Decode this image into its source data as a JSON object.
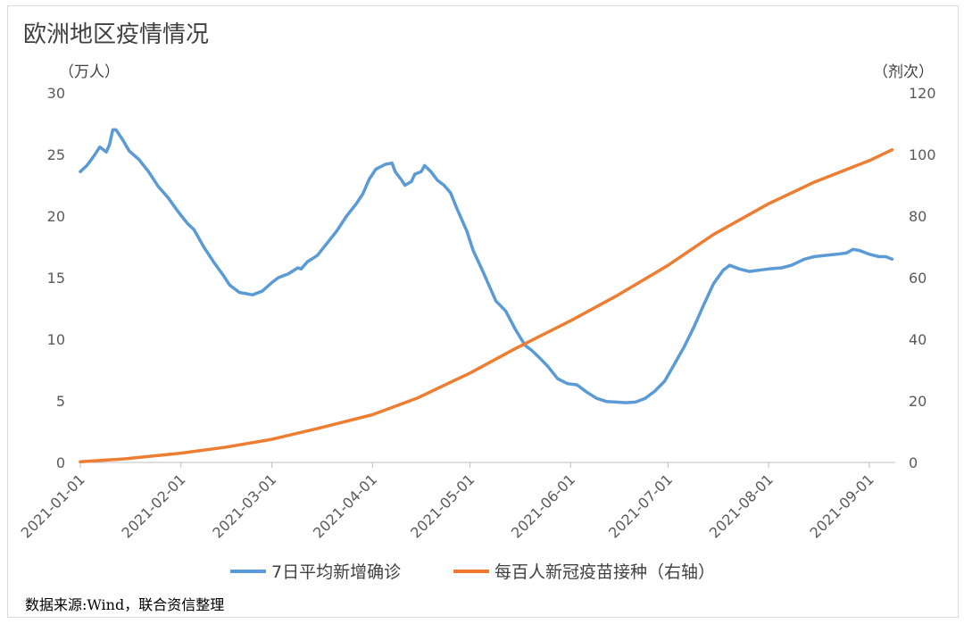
{
  "title": "欧洲地区疫情情况",
  "left_axis_unit": "（万人）",
  "right_axis_unit": "（剂次）",
  "source": "数据来源:Wind，联合资信整理",
  "colors": {
    "series1": "#5b9bd5",
    "series2": "#ed7d31",
    "axis": "#bfbfbf",
    "text": "#595959"
  },
  "chart_data": {
    "type": "line",
    "title": "欧洲地区疫情情况",
    "legend_position": "bottom",
    "grid": false,
    "x_ticks": [
      "2021-01-01",
      "2021-02-01",
      "2021-03-01",
      "2021-04-01",
      "2021-05-01",
      "2021-06-01",
      "2021-07-01",
      "2021-08-01",
      "2021-09-01"
    ],
    "y_left": {
      "label": "（万人）",
      "range": [
        0,
        30
      ],
      "ticks": [
        "0",
        "5",
        "10",
        "15",
        "20",
        "25",
        "30"
      ]
    },
    "y_right": {
      "label": "（剂次）",
      "range": [
        0,
        120
      ],
      "ticks": [
        "0",
        "20",
        "40",
        "60",
        "80",
        "100",
        "120"
      ]
    },
    "series": [
      {
        "name": "7日平均新增确诊",
        "axis": "left",
        "points": [
          [
            "2021-01-01",
            23.6
          ],
          [
            "2021-01-03",
            24.1
          ],
          [
            "2021-01-05",
            24.8
          ],
          [
            "2021-01-07",
            25.6
          ],
          [
            "2021-01-08",
            25.4
          ],
          [
            "2021-01-09",
            25.2
          ],
          [
            "2021-01-10",
            25.8
          ],
          [
            "2021-01-11",
            27.0
          ],
          [
            "2021-01-12",
            27.0
          ],
          [
            "2021-01-14",
            26.2
          ],
          [
            "2021-01-16",
            25.3
          ],
          [
            "2021-01-19",
            24.6
          ],
          [
            "2021-01-22",
            23.6
          ],
          [
            "2021-01-25",
            22.4
          ],
          [
            "2021-01-28",
            21.5
          ],
          [
            "2021-01-31",
            20.4
          ],
          [
            "2021-02-03",
            19.4
          ],
          [
            "2021-02-05",
            18.9
          ],
          [
            "2021-02-08",
            17.5
          ],
          [
            "2021-02-11",
            16.3
          ],
          [
            "2021-02-14",
            15.2
          ],
          [
            "2021-02-16",
            14.4
          ],
          [
            "2021-02-19",
            13.8
          ],
          [
            "2021-02-21",
            13.7
          ],
          [
            "2021-02-23",
            13.6
          ],
          [
            "2021-02-26",
            13.9
          ],
          [
            "2021-03-01",
            14.6
          ],
          [
            "2021-03-03",
            15.0
          ],
          [
            "2021-03-06",
            15.3
          ],
          [
            "2021-03-09",
            15.8
          ],
          [
            "2021-03-10",
            15.7
          ],
          [
            "2021-03-12",
            16.3
          ],
          [
            "2021-03-15",
            16.8
          ],
          [
            "2021-03-18",
            17.8
          ],
          [
            "2021-03-21",
            18.8
          ],
          [
            "2021-03-24",
            20.0
          ],
          [
            "2021-03-27",
            21.0
          ],
          [
            "2021-03-29",
            21.8
          ],
          [
            "2021-03-31",
            23.0
          ],
          [
            "2021-04-02",
            23.8
          ],
          [
            "2021-04-05",
            24.2
          ],
          [
            "2021-04-07",
            24.3
          ],
          [
            "2021-04-08",
            23.6
          ],
          [
            "2021-04-10",
            22.9
          ],
          [
            "2021-04-11",
            22.5
          ],
          [
            "2021-04-13",
            22.8
          ],
          [
            "2021-04-14",
            23.4
          ],
          [
            "2021-04-16",
            23.6
          ],
          [
            "2021-04-17",
            24.1
          ],
          [
            "2021-04-19",
            23.6
          ],
          [
            "2021-04-21",
            22.9
          ],
          [
            "2021-04-23",
            22.5
          ],
          [
            "2021-04-25",
            21.9
          ],
          [
            "2021-04-27",
            20.6
          ],
          [
            "2021-04-30",
            18.8
          ],
          [
            "2021-05-02",
            17.2
          ],
          [
            "2021-05-05",
            15.5
          ],
          [
            "2021-05-07",
            14.3
          ],
          [
            "2021-05-09",
            13.1
          ],
          [
            "2021-05-12",
            12.3
          ],
          [
            "2021-05-15",
            10.8
          ],
          [
            "2021-05-18",
            9.5
          ],
          [
            "2021-05-20",
            9.1
          ],
          [
            "2021-05-22",
            8.6
          ],
          [
            "2021-05-25",
            7.8
          ],
          [
            "2021-05-28",
            6.8
          ],
          [
            "2021-05-31",
            6.4
          ],
          [
            "2021-06-03",
            6.3
          ],
          [
            "2021-06-06",
            5.7
          ],
          [
            "2021-06-09",
            5.2
          ],
          [
            "2021-06-12",
            4.95
          ],
          [
            "2021-06-15",
            4.9
          ],
          [
            "2021-06-18",
            4.85
          ],
          [
            "2021-06-21",
            4.9
          ],
          [
            "2021-06-24",
            5.2
          ],
          [
            "2021-06-27",
            5.8
          ],
          [
            "2021-06-30",
            6.6
          ],
          [
            "2021-07-03",
            8.0
          ],
          [
            "2021-07-06",
            9.4
          ],
          [
            "2021-07-09",
            11.0
          ],
          [
            "2021-07-12",
            12.8
          ],
          [
            "2021-07-15",
            14.5
          ],
          [
            "2021-07-18",
            15.6
          ],
          [
            "2021-07-20",
            16.0
          ],
          [
            "2021-07-23",
            15.7
          ],
          [
            "2021-07-26",
            15.5
          ],
          [
            "2021-07-29",
            15.6
          ],
          [
            "2021-08-01",
            15.7
          ],
          [
            "2021-08-05",
            15.8
          ],
          [
            "2021-08-08",
            16.0
          ],
          [
            "2021-08-12",
            16.5
          ],
          [
            "2021-08-15",
            16.7
          ],
          [
            "2021-08-18",
            16.8
          ],
          [
            "2021-08-22",
            16.9
          ],
          [
            "2021-08-25",
            17.0
          ],
          [
            "2021-08-27",
            17.3
          ],
          [
            "2021-08-29",
            17.2
          ],
          [
            "2021-09-01",
            16.9
          ],
          [
            "2021-09-04",
            16.7
          ],
          [
            "2021-09-06",
            16.7
          ],
          [
            "2021-09-08",
            16.5
          ]
        ]
      },
      {
        "name": "每百人新冠疫苗接种（右轴）",
        "axis": "right",
        "points": [
          [
            "2021-01-01",
            0.2
          ],
          [
            "2021-01-15",
            1.2
          ],
          [
            "2021-02-01",
            3.0
          ],
          [
            "2021-02-15",
            5.0
          ],
          [
            "2021-03-01",
            7.5
          ],
          [
            "2021-03-15",
            11.0
          ],
          [
            "2021-04-01",
            15.5
          ],
          [
            "2021-04-15",
            21.0
          ],
          [
            "2021-05-01",
            29.0
          ],
          [
            "2021-05-15",
            37.0
          ],
          [
            "2021-06-01",
            46.0
          ],
          [
            "2021-06-15",
            54.0
          ],
          [
            "2021-07-01",
            64.0
          ],
          [
            "2021-07-15",
            74.0
          ],
          [
            "2021-08-01",
            84.0
          ],
          [
            "2021-08-15",
            91.0
          ],
          [
            "2021-09-01",
            98.0
          ],
          [
            "2021-09-08",
            101.5
          ]
        ]
      }
    ]
  }
}
